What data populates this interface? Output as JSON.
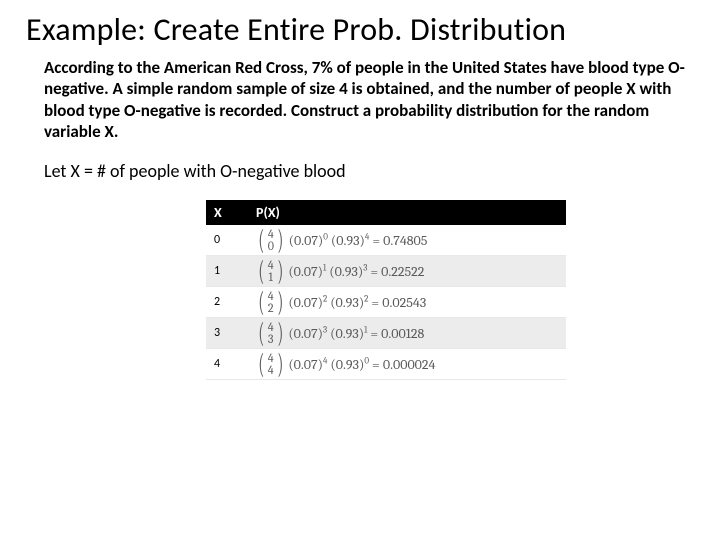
{
  "title": "Example: Create Entire Prob. Distribution",
  "problem": "According to the American Red Cross, 7% of people in the United States have blood type O-negative.  A simple random sample of size 4 is obtained, and the number of people X with blood type O-negative is recorded.  Construct a probability distribution for the random variable X.",
  "let_line": "Let X = # of people with O-negative blood",
  "headers": {
    "x": "X",
    "px": "P(X)"
  },
  "p": "0.07",
  "q": "0.93",
  "n": "4",
  "rows": [
    {
      "x": "0",
      "k": "0",
      "pexp": "0",
      "qexp": "4",
      "result": "= 0.74805",
      "alt": false
    },
    {
      "x": "1",
      "k": "1",
      "pexp": "1",
      "qexp": "3",
      "result": "= 0.22522",
      "alt": true
    },
    {
      "x": "2",
      "k": "2",
      "pexp": "2",
      "qexp": "2",
      "result": "= 0.02543",
      "alt": false
    },
    {
      "x": "3",
      "k": "3",
      "pexp": "3",
      "qexp": "1",
      "result": "= 0.00128",
      "alt": true
    },
    {
      "x": "4",
      "k": "4",
      "pexp": "4",
      "qexp": "0",
      "result": "= 0.000024",
      "alt": false
    }
  ]
}
